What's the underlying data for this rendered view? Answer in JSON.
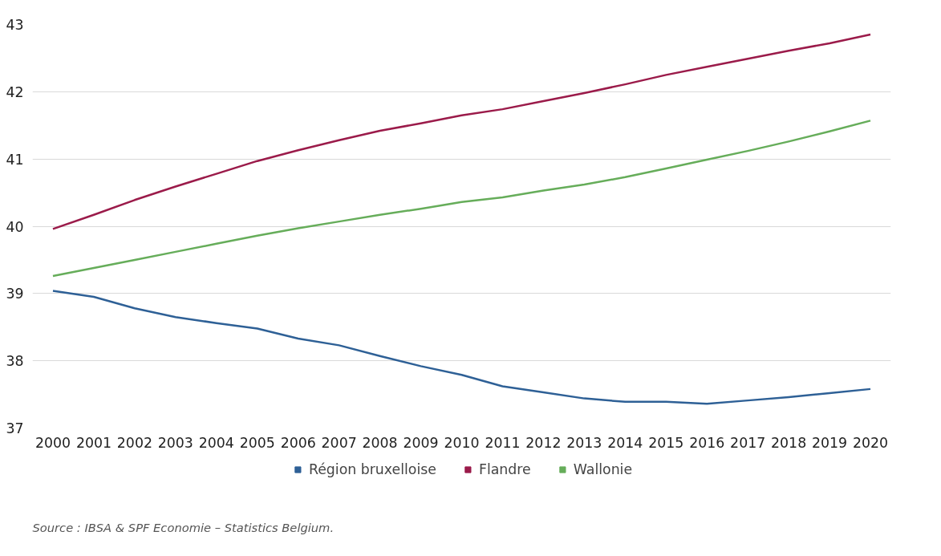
{
  "chart_data": {
    "type": "line",
    "x": [
      2000,
      2001,
      2002,
      2003,
      2004,
      2005,
      2006,
      2007,
      2008,
      2009,
      2010,
      2011,
      2012,
      2013,
      2014,
      2015,
      2016,
      2017,
      2018,
      2019,
      2020
    ],
    "series": [
      {
        "name": "Région bruxelloise",
        "color": "#2e6096",
        "values": [
          39.04,
          38.95,
          38.78,
          38.65,
          38.56,
          38.48,
          38.33,
          38.23,
          38.07,
          37.92,
          37.79,
          37.62,
          37.53,
          37.44,
          37.39,
          37.39,
          37.36,
          37.41,
          37.46,
          37.52,
          37.58
        ]
      },
      {
        "name": "Flandre",
        "color": "#9b1b4a",
        "values": [
          39.96,
          40.17,
          40.39,
          40.59,
          40.78,
          40.97,
          41.13,
          41.28,
          41.42,
          41.53,
          41.65,
          41.74,
          41.86,
          41.98,
          42.11,
          42.25,
          42.37,
          42.49,
          42.61,
          42.72,
          42.85
        ]
      },
      {
        "name": "Wallonie",
        "color": "#66ad5a",
        "values": [
          39.26,
          39.38,
          39.5,
          39.62,
          39.74,
          39.86,
          39.97,
          40.07,
          40.17,
          40.26,
          40.36,
          40.43,
          40.53,
          40.62,
          40.73,
          40.86,
          40.99,
          41.12,
          41.26,
          41.41,
          41.57
        ]
      }
    ],
    "xlim": [
      1999.5,
      2020.5
    ],
    "xticks": [
      2000,
      2001,
      2002,
      2003,
      2004,
      2005,
      2006,
      2007,
      2008,
      2009,
      2010,
      2011,
      2012,
      2013,
      2014,
      2015,
      2016,
      2017,
      2018,
      2019,
      2020
    ],
    "ylim": [
      37,
      43
    ],
    "yticks": [
      37,
      38,
      39,
      40,
      41,
      42,
      43
    ],
    "grid": "y",
    "legend": "bottom",
    "marker": "none",
    "line_style": "solid",
    "annotations": [
      "Source : IBSA & SPF Economie – Statistics Belgium."
    ]
  }
}
